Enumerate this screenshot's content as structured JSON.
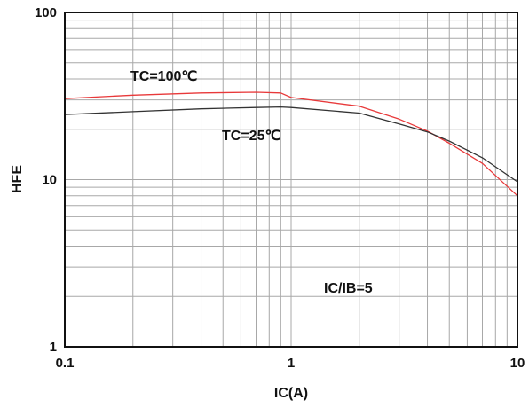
{
  "chart_data": {
    "type": "line",
    "title": "",
    "xlabel": "IC(A)",
    "ylabel": "HFE",
    "x_scale": "log",
    "y_scale": "log",
    "xlim": [
      0.1,
      10
    ],
    "ylim": [
      1,
      100
    ],
    "grid": true,
    "x_ticks": [
      "0.1",
      "1",
      "10"
    ],
    "y_ticks": [
      "1",
      "10",
      "100"
    ],
    "series": [
      {
        "name": "TC=100℃",
        "color": "#e8393a",
        "x": [
          0.1,
          0.2,
          0.4,
          0.7,
          0.9,
          1.0,
          2.0,
          3.0,
          4.0,
          5.0,
          7.0,
          10.0
        ],
        "y": [
          30.5,
          32,
          33,
          33.3,
          33,
          31,
          27.5,
          23,
          19.5,
          16.5,
          12.5,
          8.0
        ]
      },
      {
        "name": "TC=25℃",
        "color": "#333333",
        "x": [
          0.1,
          0.2,
          0.4,
          0.7,
          0.9,
          1.0,
          2.0,
          3.0,
          4.0,
          5.0,
          7.0,
          10.0
        ],
        "y": [
          24.5,
          25.5,
          26.5,
          27,
          27.2,
          27,
          25,
          21.5,
          19.3,
          17,
          13.5,
          9.7
        ]
      }
    ],
    "annotations": [
      "TC=100℃",
      "TC=25℃",
      "IC/IB=5"
    ]
  }
}
